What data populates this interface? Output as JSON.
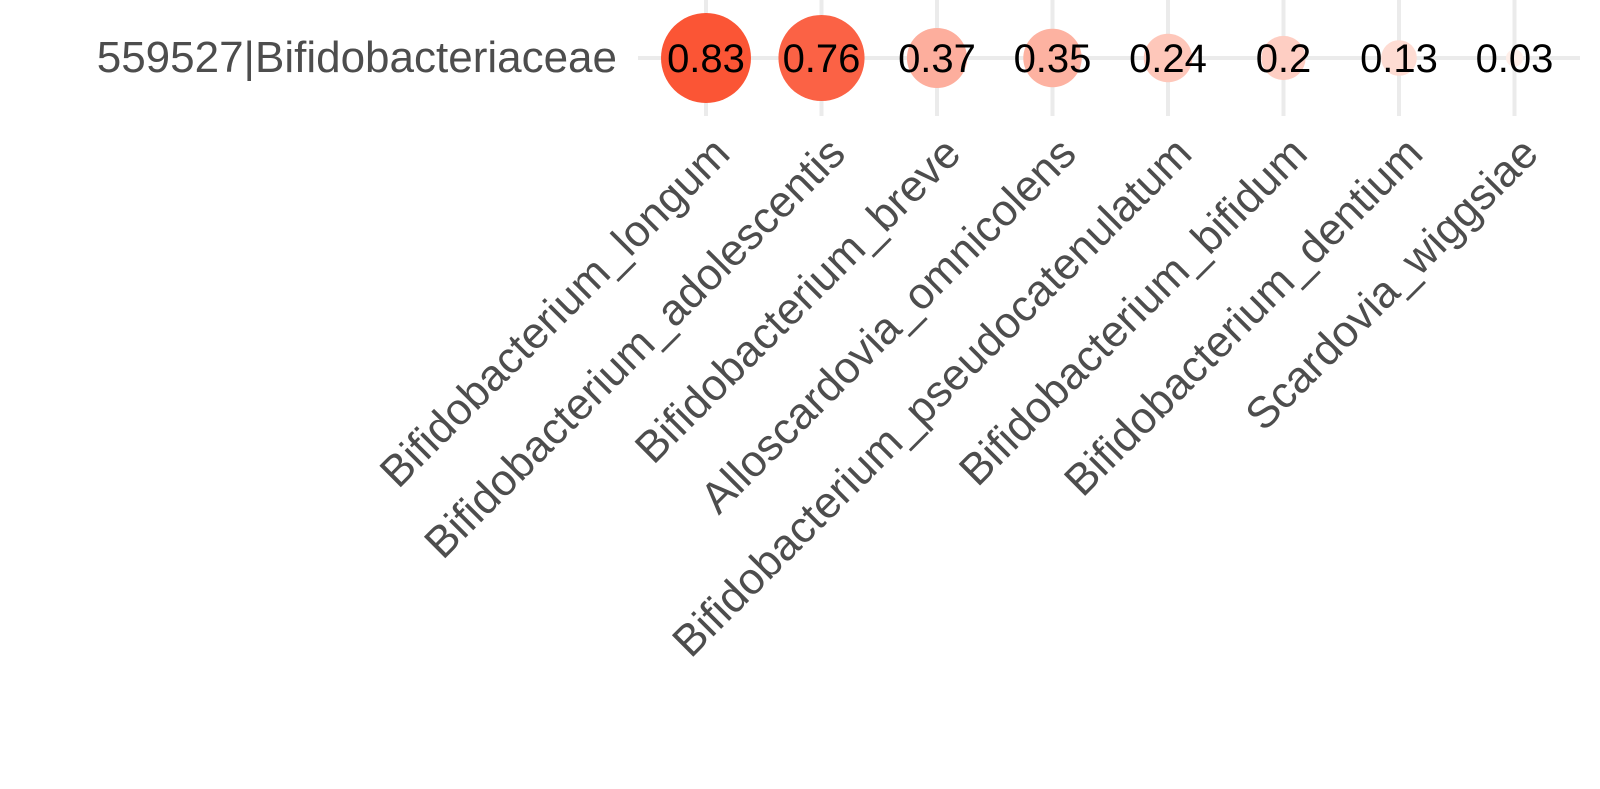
{
  "chart_data": {
    "type": "scatter",
    "title": "",
    "xlabel": "",
    "ylabel": "",
    "rows": [
      "559527|Bifidobacteriaceae"
    ],
    "categories": [
      "Bifidobacterium_longum",
      "Bifidobacterium_adolescentis",
      "Bifidobacterium_breve",
      "Alloscardovia_omnicolens",
      "Bifidobacterium_pseudocatenulatum",
      "Bifidobacterium_bifidum",
      "Bifidobacterium_dentium",
      "Scardovia_wiggsiae"
    ],
    "values": [
      0.83,
      0.76,
      0.37,
      0.35,
      0.24,
      0.2,
      0.13,
      0.03
    ],
    "labels": [
      "0.83",
      "0.76",
      "0.37",
      "0.35",
      "0.24",
      "0.2",
      "0.13",
      "0.03"
    ],
    "grid": true,
    "legend": "none",
    "colors": {
      "low": "#fff5f0",
      "high": "#fb5535"
    }
  }
}
